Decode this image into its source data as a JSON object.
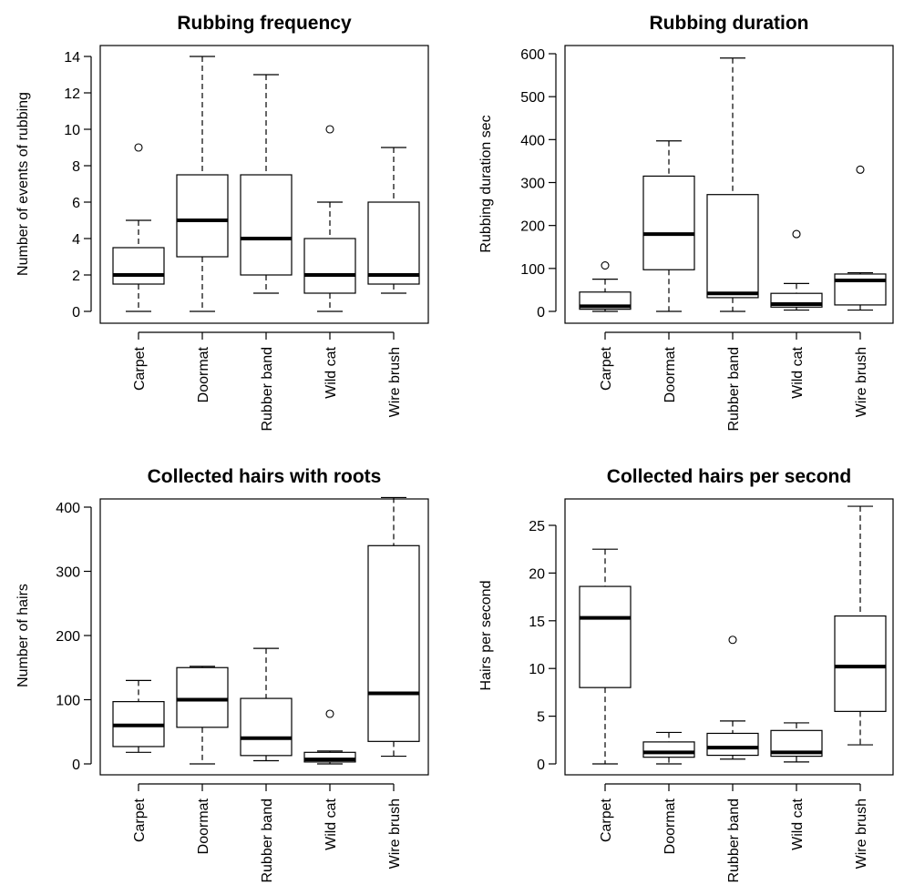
{
  "figure": {
    "panels": [
      {
        "title": "Rubbing frequency",
        "ylabel": "Number of events of rubbing",
        "yticks": [
          0,
          2,
          4,
          6,
          8,
          10,
          12,
          14
        ]
      },
      {
        "title": "Rubbing duration",
        "ylabel": "Rubbing duration sec",
        "yticks": [
          0,
          100,
          200,
          300,
          400,
          500,
          600
        ]
      },
      {
        "title": "Collected hairs with roots",
        "ylabel": "Number of hairs",
        "yticks": [
          0,
          100,
          200,
          300,
          400
        ]
      },
      {
        "title": "Collected hairs per second",
        "ylabel": "Hairs per second",
        "yticks": [
          0,
          5,
          10,
          15,
          20,
          25
        ]
      }
    ]
  },
  "chart_data": [
    {
      "type": "boxplot",
      "title": "Rubbing frequency",
      "xlabel": "",
      "ylabel": "Number of events of rubbing",
      "ylim": [
        0,
        14
      ],
      "categories": [
        "Carpet",
        "Doormat",
        "Rubber band",
        "Wild cat",
        "Wire brush"
      ],
      "boxes": [
        {
          "min": 0,
          "q1": 1.5,
          "median": 2,
          "q3": 3.5,
          "max": 5,
          "outliers": [
            9
          ]
        },
        {
          "min": 0,
          "q1": 3,
          "median": 5,
          "q3": 7.5,
          "max": 14,
          "outliers": []
        },
        {
          "min": 1,
          "q1": 2,
          "median": 4,
          "q3": 7.5,
          "max": 13,
          "outliers": []
        },
        {
          "min": 0,
          "q1": 1,
          "median": 2,
          "q3": 4,
          "max": 6,
          "outliers": [
            10
          ]
        },
        {
          "min": 1,
          "q1": 1.5,
          "median": 2,
          "q3": 6,
          "max": 9,
          "outliers": []
        }
      ]
    },
    {
      "type": "boxplot",
      "title": "Rubbing duration",
      "xlabel": "",
      "ylabel": "Rubbing duration sec",
      "ylim": [
        0,
        600
      ],
      "categories": [
        "Carpet",
        "Doormat",
        "Rubber band",
        "Wild cat",
        "Wire brush"
      ],
      "boxes": [
        {
          "min": 0,
          "q1": 5,
          "median": 12,
          "q3": 45,
          "max": 75,
          "outliers": [
            107
          ]
        },
        {
          "min": 0,
          "q1": 97,
          "median": 180,
          "q3": 315,
          "max": 397,
          "outliers": []
        },
        {
          "min": 0,
          "q1": 32,
          "median": 42,
          "q3": 272,
          "max": 590,
          "outliers": []
        },
        {
          "min": 3,
          "q1": 10,
          "median": 17,
          "q3": 42,
          "max": 65,
          "outliers": [
            180
          ]
        },
        {
          "min": 3,
          "q1": 15,
          "median": 72,
          "q3": 87,
          "max": 90,
          "outliers": [
            330
          ]
        }
      ]
    },
    {
      "type": "boxplot",
      "title": "Collected hairs with roots",
      "xlabel": "",
      "ylabel": "Number of hairs",
      "ylim": [
        0,
        410
      ],
      "categories": [
        "Carpet",
        "Doormat",
        "Rubber band",
        "Wild cat",
        "Wire brush"
      ],
      "boxes": [
        {
          "min": 18,
          "q1": 27,
          "median": 60,
          "q3": 97,
          "max": 130,
          "outliers": []
        },
        {
          "min": 0,
          "q1": 57,
          "median": 100,
          "q3": 150,
          "max": 152,
          "outliers": []
        },
        {
          "min": 5,
          "q1": 13,
          "median": 40,
          "q3": 102,
          "max": 180,
          "outliers": []
        },
        {
          "min": 0,
          "q1": 3,
          "median": 7,
          "q3": 18,
          "max": 20,
          "outliers": [
            78
          ]
        },
        {
          "min": 12,
          "q1": 35,
          "median": 110,
          "q3": 340,
          "max": 415,
          "outliers": []
        }
      ]
    },
    {
      "type": "boxplot",
      "title": "Collected hairs per second",
      "xlabel": "",
      "ylabel": "Hairs per second",
      "ylim": [
        0,
        27
      ],
      "categories": [
        "Carpet",
        "Doormat",
        "Rubber band",
        "Wild cat",
        "Wire brush"
      ],
      "boxes": [
        {
          "min": 0,
          "q1": 8,
          "median": 15.3,
          "q3": 18.6,
          "max": 22.5,
          "outliers": []
        },
        {
          "min": 0,
          "q1": 0.7,
          "median": 1.2,
          "q3": 2.3,
          "max": 3.3,
          "outliers": []
        },
        {
          "min": 0.5,
          "q1": 0.9,
          "median": 1.7,
          "q3": 3.2,
          "max": 4.5,
          "outliers": [
            13
          ]
        },
        {
          "min": 0.2,
          "q1": 0.8,
          "median": 1.2,
          "q3": 3.5,
          "max": 4.3,
          "outliers": []
        },
        {
          "min": 2,
          "q1": 5.5,
          "median": 10.2,
          "q3": 15.5,
          "max": 27,
          "outliers": []
        }
      ]
    }
  ]
}
